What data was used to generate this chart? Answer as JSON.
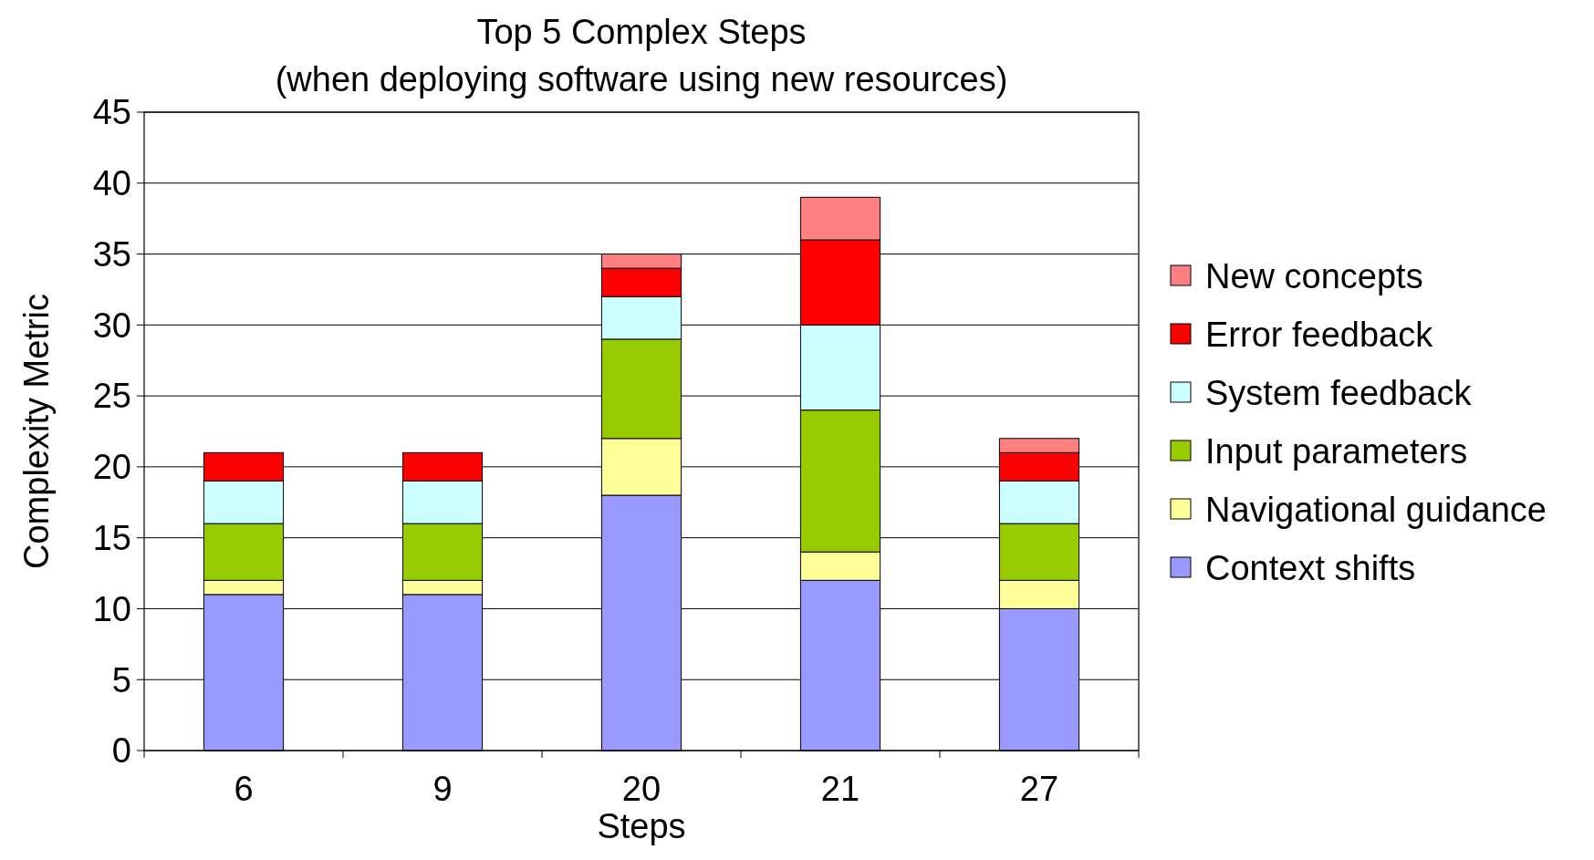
{
  "chart_data": {
    "type": "bar",
    "stacked": true,
    "title": "Top 5 Complex Steps",
    "subtitle": "(when deploying software using new resources)",
    "xlabel": "Steps",
    "ylabel": "Complexity Metric",
    "categories": [
      "6",
      "9",
      "20",
      "21",
      "27"
    ],
    "series": [
      {
        "name": "Context shifts",
        "color": "#9999ff",
        "values": [
          11,
          11,
          18,
          12,
          10
        ]
      },
      {
        "name": "Navigational guidance",
        "color": "#ffff99",
        "values": [
          1,
          1,
          4,
          2,
          2
        ]
      },
      {
        "name": "Input parameters",
        "color": "#99cc00",
        "values": [
          4,
          4,
          7,
          10,
          4
        ]
      },
      {
        "name": "System feedback",
        "color": "#ccffff",
        "values": [
          3,
          3,
          3,
          6,
          3
        ]
      },
      {
        "name": "Error feedback",
        "color": "#ff0000",
        "values": [
          2,
          2,
          2,
          6,
          2
        ]
      },
      {
        "name": "New concepts",
        "color": "#ff8080",
        "values": [
          0,
          0,
          1,
          3,
          1
        ]
      }
    ],
    "ylim": [
      0,
      45
    ],
    "yticks": [
      0,
      5,
      10,
      15,
      20,
      25,
      30,
      35,
      40,
      45
    ],
    "grid": "y",
    "legend": "right"
  }
}
